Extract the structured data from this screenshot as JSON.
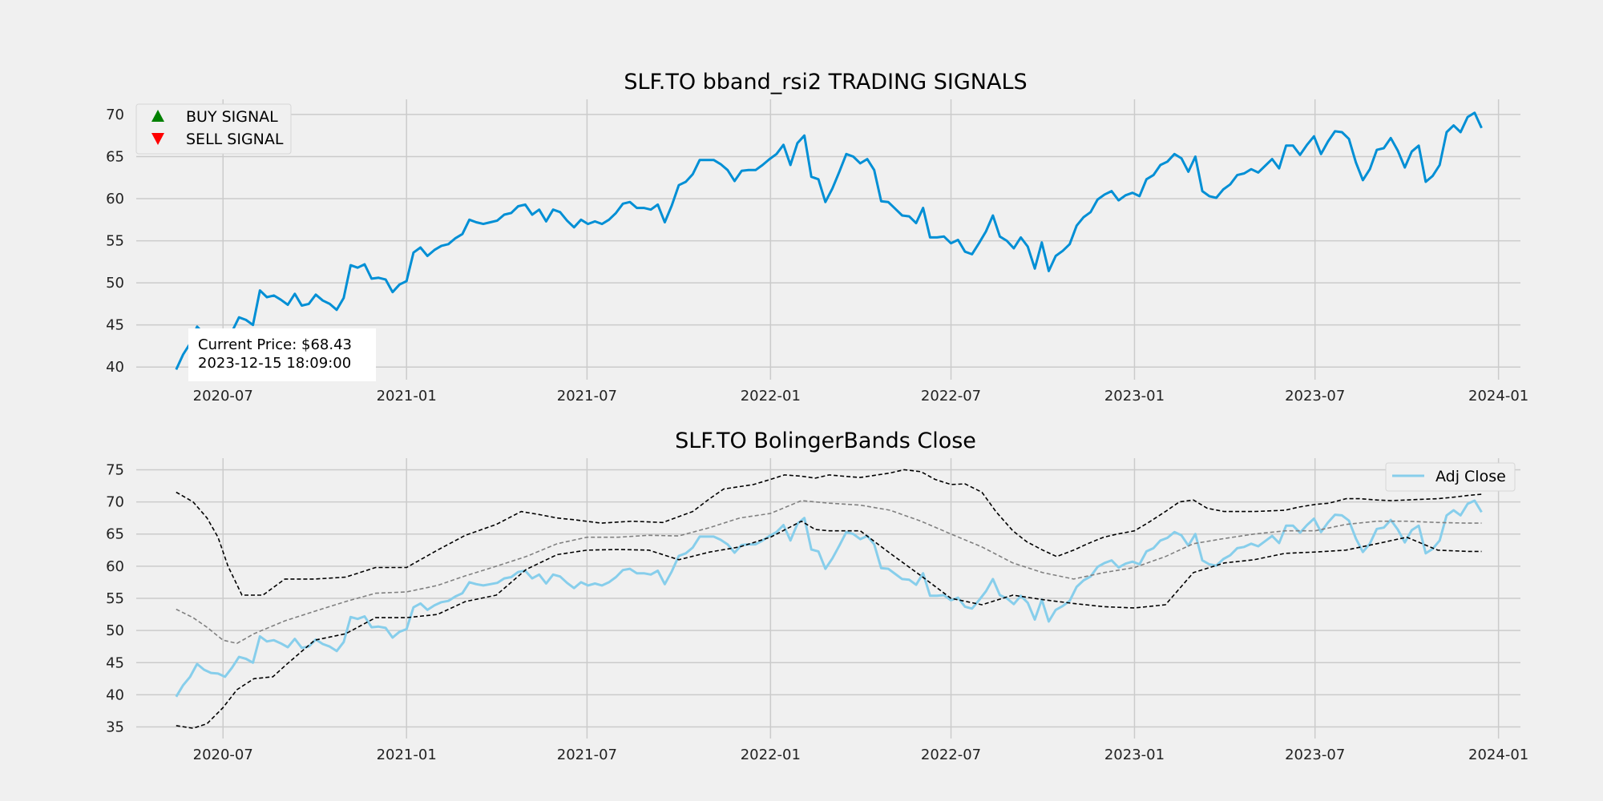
{
  "chart_data": [
    {
      "type": "line",
      "title": "SLF.TO bband_rsi2 TRADING SIGNALS",
      "xlim": [
        "2020-04-05",
        "2024-01-23"
      ],
      "ylim": [
        38.5,
        71.8
      ],
      "x_ticks": [
        "2020-07",
        "2021-01",
        "2021-07",
        "2022-01",
        "2022-07",
        "2023-01",
        "2023-07",
        "2024-01"
      ],
      "y_ticks": [
        40,
        45,
        50,
        55,
        60,
        65,
        70
      ],
      "grid": true,
      "legend": {
        "position": "top-left",
        "entries": [
          {
            "label": "BUY SIGNAL",
            "marker": "triangle-up",
            "color": "#008000"
          },
          {
            "label": "SELL SIGNAL",
            "marker": "triangle-down",
            "color": "#ff0000"
          }
        ]
      },
      "annotation": {
        "line1": "Current Price: $68.43",
        "line2": "2023-12-15 18:09:00"
      },
      "series": [
        {
          "series_ref": "close",
          "color": "#008fd5"
        }
      ]
    },
    {
      "type": "line",
      "title": "SLF.TO BolingerBands Close",
      "xlim": [
        "2020-04-05",
        "2024-01-23"
      ],
      "ylim": [
        33.2,
        76.8
      ],
      "x_ticks": [
        "2020-07",
        "2021-01",
        "2021-07",
        "2022-01",
        "2022-07",
        "2023-01",
        "2023-07",
        "2024-01"
      ],
      "y_ticks": [
        35,
        40,
        45,
        50,
        55,
        60,
        65,
        70,
        75
      ],
      "grid": true,
      "legend": {
        "position": "top-right",
        "entries": [
          {
            "label": "Adj Close",
            "color": "#87ceeb"
          }
        ]
      },
      "series": [
        {
          "name": "Adj Close",
          "series_ref": "close",
          "color": "#87ceeb"
        },
        {
          "series_ref": "upper",
          "color": "#000000",
          "dash": true
        },
        {
          "series_ref": "middle",
          "color": "#808080",
          "dash": true
        },
        {
          "series_ref": "lower",
          "color": "#000000",
          "dash": true
        }
      ]
    }
  ],
  "series_data": {
    "close": {
      "x": [
        "2020-05-15",
        "2020-05-22",
        "2020-05-29",
        "2020-06-05",
        "2020-06-12",
        "2020-06-19",
        "2020-06-26",
        "2020-07-03",
        "2020-07-10",
        "2020-07-17",
        "2020-07-24",
        "2020-07-31",
        "2020-08-07",
        "2020-08-14",
        "2020-08-21",
        "2020-08-28",
        "2020-09-04",
        "2020-09-11",
        "2020-09-18",
        "2020-09-25",
        "2020-10-02",
        "2020-10-09",
        "2020-10-16",
        "2020-10-23",
        "2020-10-30",
        "2020-11-06",
        "2020-11-13",
        "2020-11-20",
        "2020-11-27",
        "2020-12-04",
        "2020-12-11",
        "2020-12-18",
        "2020-12-25",
        "2021-01-01",
        "2021-01-08",
        "2021-01-15",
        "2021-01-22",
        "2021-01-29",
        "2021-02-05",
        "2021-02-12",
        "2021-02-19",
        "2021-02-26",
        "2021-03-05",
        "2021-03-12",
        "2021-03-19",
        "2021-03-26",
        "2021-04-02",
        "2021-04-09",
        "2021-04-16",
        "2021-04-23",
        "2021-04-30",
        "2021-05-07",
        "2021-05-14",
        "2021-05-21",
        "2021-05-28",
        "2021-06-04",
        "2021-06-11",
        "2021-06-18",
        "2021-06-25",
        "2021-07-02",
        "2021-07-09",
        "2021-07-16",
        "2021-07-23",
        "2021-07-30",
        "2021-08-06",
        "2021-08-13",
        "2021-08-20",
        "2021-08-27",
        "2021-09-03",
        "2021-09-10",
        "2021-09-17",
        "2021-09-24",
        "2021-10-01",
        "2021-10-08",
        "2021-10-15",
        "2021-10-22",
        "2021-10-29",
        "2021-11-05",
        "2021-11-12",
        "2021-11-19",
        "2021-11-26",
        "2021-12-03",
        "2021-12-10",
        "2021-12-17",
        "2021-12-24",
        "2021-12-31",
        "2022-01-07",
        "2022-01-14",
        "2022-01-21",
        "2022-01-28",
        "2022-02-04",
        "2022-02-11",
        "2022-02-18",
        "2022-02-25",
        "2022-03-04",
        "2022-03-11",
        "2022-03-18",
        "2022-03-25",
        "2022-04-01",
        "2022-04-08",
        "2022-04-15",
        "2022-04-22",
        "2022-04-29",
        "2022-05-06",
        "2022-05-13",
        "2022-05-20",
        "2022-05-27",
        "2022-06-03",
        "2022-06-10",
        "2022-06-17",
        "2022-06-24",
        "2022-07-01",
        "2022-07-08",
        "2022-07-15",
        "2022-07-22",
        "2022-07-29",
        "2022-08-05",
        "2022-08-12",
        "2022-08-19",
        "2022-08-26",
        "2022-09-02",
        "2022-09-09",
        "2022-09-16",
        "2022-09-23",
        "2022-09-30",
        "2022-10-07",
        "2022-10-14",
        "2022-10-21",
        "2022-10-28",
        "2022-11-04",
        "2022-11-11",
        "2022-11-18",
        "2022-11-25",
        "2022-12-02",
        "2022-12-09",
        "2022-12-16",
        "2022-12-23",
        "2022-12-30",
        "2023-01-06",
        "2023-01-13",
        "2023-01-20",
        "2023-01-27",
        "2023-02-03",
        "2023-02-10",
        "2023-02-17",
        "2023-02-24",
        "2023-03-03",
        "2023-03-10",
        "2023-03-17",
        "2023-03-24",
        "2023-03-31",
        "2023-04-07",
        "2023-04-14",
        "2023-04-21",
        "2023-04-28",
        "2023-05-05",
        "2023-05-12",
        "2023-05-19",
        "2023-05-26",
        "2023-06-02",
        "2023-06-09",
        "2023-06-16",
        "2023-06-23",
        "2023-06-30",
        "2023-07-07",
        "2023-07-14",
        "2023-07-21",
        "2023-07-28",
        "2023-08-04",
        "2023-08-11",
        "2023-08-18",
        "2023-08-25",
        "2023-09-01",
        "2023-09-08",
        "2023-09-15",
        "2023-09-22",
        "2023-09-29",
        "2023-10-06",
        "2023-10-13",
        "2023-10-20",
        "2023-10-27",
        "2023-11-03",
        "2023-11-10",
        "2023-11-17",
        "2023-11-24",
        "2023-12-01",
        "2023-12-08",
        "2023-12-15"
      ],
      "y": [
        39.7,
        41.5,
        42.8,
        44.8,
        43.9,
        43.4,
        43.3,
        42.8,
        44.2,
        45.9,
        45.6,
        45.0,
        49.1,
        48.3,
        48.5,
        48.0,
        47.4,
        48.7,
        47.3,
        47.5,
        48.6,
        47.9,
        47.5,
        46.8,
        48.2,
        52.1,
        51.8,
        52.2,
        50.5,
        50.6,
        50.4,
        48.9,
        49.8,
        50.2,
        53.6,
        54.2,
        53.2,
        53.9,
        54.4,
        54.6,
        55.3,
        55.8,
        57.5,
        57.2,
        57.0,
        57.2,
        57.4,
        58.1,
        58.3,
        59.1,
        59.3,
        58.1,
        58.7,
        57.3,
        58.7,
        58.4,
        57.4,
        56.6,
        57.5,
        57.0,
        57.3,
        57.0,
        57.5,
        58.3,
        59.4,
        59.6,
        58.9,
        58.9,
        58.7,
        59.3,
        57.2,
        59.2,
        61.6,
        62.0,
        62.9,
        64.6,
        64.6,
        64.6,
        64.1,
        63.4,
        62.1,
        63.3,
        63.4,
        63.4,
        64.0,
        64.7,
        65.3,
        66.4,
        64.0,
        66.6,
        67.5,
        62.6,
        62.3,
        59.6,
        61.2,
        63.2,
        65.3,
        65.0,
        64.2,
        64.7,
        63.4,
        59.7,
        59.6,
        58.8,
        58.0,
        57.9,
        57.1,
        58.9,
        55.4,
        55.4,
        55.5,
        54.7,
        55.1,
        53.7,
        53.4,
        54.7,
        56.1,
        58.0,
        55.5,
        55.0,
        54.1,
        55.4,
        54.3,
        51.7,
        54.8,
        51.4,
        53.2,
        53.8,
        54.6,
        56.8,
        57.8,
        58.4,
        59.9,
        60.5,
        60.9,
        59.8,
        60.4,
        60.7,
        60.3,
        62.3,
        62.8,
        64.0,
        64.4,
        65.3,
        64.8,
        63.2,
        65.0,
        60.9,
        60.3,
        60.1,
        61.1,
        61.7,
        62.8,
        63.0,
        63.5,
        63.1,
        63.9,
        64.7,
        63.6,
        66.3,
        66.3,
        65.2,
        66.4,
        67.4,
        65.3,
        66.8,
        68.0,
        67.9,
        67.1,
        64.3,
        62.2,
        63.5,
        65.8,
        66.0,
        67.2,
        65.7,
        63.7,
        65.6,
        66.3,
        62.0,
        62.7,
        64.0,
        67.9,
        68.7,
        67.9,
        69.7,
        70.2,
        68.4
      ]
    },
    "upper": {
      "x": [
        "2020-05-15",
        "2020-06-01",
        "2020-06-15",
        "2020-06-26",
        "2020-07-06",
        "2020-07-20",
        "2020-08-10",
        "2020-09-01",
        "2020-10-01",
        "2020-11-01",
        "2020-12-01",
        "2021-01-01",
        "2021-02-01",
        "2021-03-01",
        "2021-04-01",
        "2021-04-26",
        "2021-05-15",
        "2021-06-01",
        "2021-06-20",
        "2021-07-15",
        "2021-08-15",
        "2021-09-15",
        "2021-10-15",
        "2021-11-01",
        "2021-11-15",
        "2021-12-15",
        "2022-01-01",
        "2022-01-15",
        "2022-02-01",
        "2022-02-15",
        "2022-03-01",
        "2022-03-15",
        "2022-04-01",
        "2022-05-01",
        "2022-05-15",
        "2022-06-01",
        "2022-06-15",
        "2022-07-01",
        "2022-07-15",
        "2022-08-01",
        "2022-08-15",
        "2022-09-01",
        "2022-09-15",
        "2022-10-01",
        "2022-10-15",
        "2022-11-01",
        "2022-11-15",
        "2022-12-01",
        "2022-12-15",
        "2023-01-01",
        "2023-01-15",
        "2023-02-01",
        "2023-02-15",
        "2023-03-01",
        "2023-03-15",
        "2023-04-01",
        "2023-05-01",
        "2023-06-01",
        "2023-06-15",
        "2023-07-01",
        "2023-07-15",
        "2023-08-01",
        "2023-08-15",
        "2023-09-01",
        "2023-09-15",
        "2023-10-01",
        "2023-10-15",
        "2023-11-01",
        "2023-11-15",
        "2023-12-01",
        "2023-12-15"
      ],
      "y": [
        71.5,
        70.0,
        67.5,
        64.5,
        60.0,
        55.5,
        55.5,
        58.0,
        58.0,
        58.3,
        59.8,
        59.8,
        62.5,
        64.8,
        66.5,
        68.5,
        68.0,
        67.5,
        67.2,
        66.7,
        67.0,
        66.8,
        68.5,
        70.5,
        72.0,
        72.7,
        73.5,
        74.2,
        74.0,
        73.7,
        74.2,
        74.0,
        73.8,
        74.5,
        75.0,
        74.7,
        73.5,
        72.7,
        72.8,
        71.5,
        68.5,
        65.5,
        63.8,
        62.5,
        61.5,
        62.5,
        63.5,
        64.5,
        65.0,
        65.5,
        66.8,
        68.5,
        70.0,
        70.3,
        69.0,
        68.5,
        68.5,
        68.7,
        69.2,
        69.6,
        69.8,
        70.5,
        70.5,
        70.3,
        70.2,
        70.3,
        70.4,
        70.5,
        70.7,
        71.0,
        71.2
      ]
    },
    "middle": {
      "x": [
        "2020-05-15",
        "2020-06-01",
        "2020-06-15",
        "2020-07-01",
        "2020-07-15",
        "2020-08-01",
        "2020-09-01",
        "2020-10-01",
        "2020-11-01",
        "2020-12-01",
        "2021-01-01",
        "2021-02-01",
        "2021-03-01",
        "2021-04-01",
        "2021-05-01",
        "2021-06-01",
        "2021-07-01",
        "2021-08-01",
        "2021-09-01",
        "2021-10-01",
        "2021-11-01",
        "2021-12-01",
        "2022-01-01",
        "2022-02-01",
        "2022-03-01",
        "2022-04-01",
        "2022-05-01",
        "2022-06-01",
        "2022-07-01",
        "2022-08-01",
        "2022-09-01",
        "2022-10-01",
        "2022-11-01",
        "2022-12-01",
        "2023-01-01",
        "2023-02-01",
        "2023-03-01",
        "2023-04-01",
        "2023-05-01",
        "2023-06-01",
        "2023-07-01",
        "2023-08-01",
        "2023-09-01",
        "2023-10-01",
        "2023-11-01",
        "2023-12-01",
        "2023-12-15"
      ],
      "y": [
        53.3,
        52.0,
        50.5,
        48.5,
        48.0,
        49.5,
        51.5,
        53.0,
        54.5,
        55.8,
        56.0,
        57.0,
        58.5,
        60.0,
        61.5,
        63.5,
        64.5,
        64.5,
        64.8,
        64.7,
        66.0,
        67.5,
        68.2,
        70.2,
        69.8,
        69.5,
        68.7,
        67.0,
        65.0,
        63.0,
        60.5,
        59.0,
        58.0,
        59.0,
        59.8,
        61.5,
        63.5,
        64.3,
        65.0,
        65.5,
        65.5,
        66.5,
        67.0,
        67.0,
        66.8,
        66.7,
        66.7
      ]
    },
    "lower": {
      "x": [
        "2020-05-15",
        "2020-06-01",
        "2020-06-15",
        "2020-07-01",
        "2020-07-15",
        "2020-08-01",
        "2020-08-20",
        "2020-09-01",
        "2020-10-01",
        "2020-11-01",
        "2020-12-01",
        "2021-01-01",
        "2021-02-01",
        "2021-03-01",
        "2021-04-01",
        "2021-05-01",
        "2021-06-01",
        "2021-07-01",
        "2021-08-01",
        "2021-09-01",
        "2021-10-01",
        "2021-11-01",
        "2021-12-01",
        "2022-01-01",
        "2022-02-01",
        "2022-02-15",
        "2022-03-01",
        "2022-04-01",
        "2022-05-01",
        "2022-06-01",
        "2022-07-01",
        "2022-08-01",
        "2022-09-01",
        "2022-10-01",
        "2022-11-01",
        "2022-12-01",
        "2023-01-01",
        "2023-02-01",
        "2023-03-01",
        "2023-04-01",
        "2023-05-01",
        "2023-06-01",
        "2023-07-01",
        "2023-08-01",
        "2023-09-01",
        "2023-10-01",
        "2023-11-01",
        "2023-12-01",
        "2023-12-15"
      ],
      "y": [
        35.2,
        34.8,
        35.5,
        38.0,
        40.8,
        42.5,
        42.8,
        44.5,
        48.5,
        49.5,
        52.0,
        52.0,
        52.5,
        54.5,
        55.5,
        59.5,
        61.8,
        62.5,
        62.6,
        62.5,
        61.0,
        62.2,
        63.0,
        64.5,
        67.0,
        65.7,
        65.5,
        65.5,
        62.0,
        58.5,
        55.0,
        54.0,
        55.5,
        54.8,
        54.2,
        53.7,
        53.5,
        54.0,
        59.0,
        60.5,
        61.0,
        62.0,
        62.2,
        62.5,
        63.5,
        64.5,
        62.5,
        62.3,
        62.3
      ]
    }
  }
}
